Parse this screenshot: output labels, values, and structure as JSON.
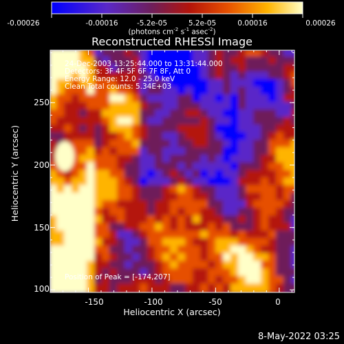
{
  "chart_data": {
    "type": "heatmap",
    "title": "Reconstructed RHESSI Image",
    "xlabel": "Heliocentric X (arcsec)",
    "ylabel": "Heliocentric Y (arcsec)",
    "xlim": [
      -180,
      12
    ],
    "ylim": [
      98,
      292
    ],
    "x_ticks": [
      "-150",
      "-100",
      "-50",
      "0"
    ],
    "x_tick_values": [
      -150,
      -100,
      -50,
      0
    ],
    "y_ticks": [
      "100",
      "150",
      "200",
      "250"
    ],
    "y_tick_values": [
      100,
      150,
      200,
      250
    ],
    "colorbar": {
      "ticks": [
        "-0.00026",
        "-0.00016",
        "-5.2e-05",
        "5.2e-05",
        "0.00016",
        "0.00026"
      ],
      "range": [
        -0.00026,
        0.00026
      ],
      "unit_prefix": "(photons cm",
      "unit_sup1": "-2",
      "unit_mid": " s",
      "unit_sup2": "-1",
      "unit_mid2": " asec",
      "unit_sup3": "-2",
      "unit_suffix": ")",
      "colormap": [
        "#0000ff",
        "#5a28c8",
        "#6e1e5a",
        "#b4140a",
        "#e65000",
        "#ffb400",
        "#ffffc8"
      ]
    },
    "annotations": [
      "24-Dec-2003 13:25:44.000 to 13:31:44.000",
      "Detectors: 3F 4F 5F 6F 7F 8F, Att 0",
      "Energy Range: 12.0 - 25.0 keV",
      "Clean    Total counts: 5.34E+03"
    ],
    "peak_label": "Position of Peak = [-174,207]",
    "peak": [
      -174,
      207
    ],
    "grid": false
  },
  "footer": {
    "date": "8-May-2022 03:25"
  }
}
